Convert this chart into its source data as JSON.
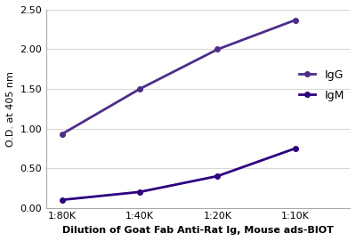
{
  "x_labels": [
    "1:80K",
    "1:40K",
    "1:20K",
    "1:10K"
  ],
  "x_values": [
    0,
    1,
    2,
    3
  ],
  "IgG_values": [
    0.93,
    1.5,
    2.0,
    2.37
  ],
  "IgM_values": [
    0.1,
    0.2,
    0.4,
    0.75
  ],
  "IgG_color": "#4d2d8a",
  "IgM_color": "#2d0080",
  "ylim": [
    0.0,
    2.5
  ],
  "yticks": [
    0.0,
    0.5,
    1.0,
    1.5,
    2.0,
    2.5
  ],
  "ylabel": "O.D. at 405 nm",
  "xlabel": "Dilution of Goat Fab Anti-Rat Ig, Mouse ads-BIOT",
  "legend_labels": [
    "IgG",
    "IgM"
  ],
  "marker": "o",
  "markersize": 4,
  "linewidth": 2.0,
  "axis_fontsize": 8,
  "tick_fontsize": 8,
  "legend_fontsize": 9,
  "background_color": "#ffffff",
  "grid_color": "#d8d8d8"
}
